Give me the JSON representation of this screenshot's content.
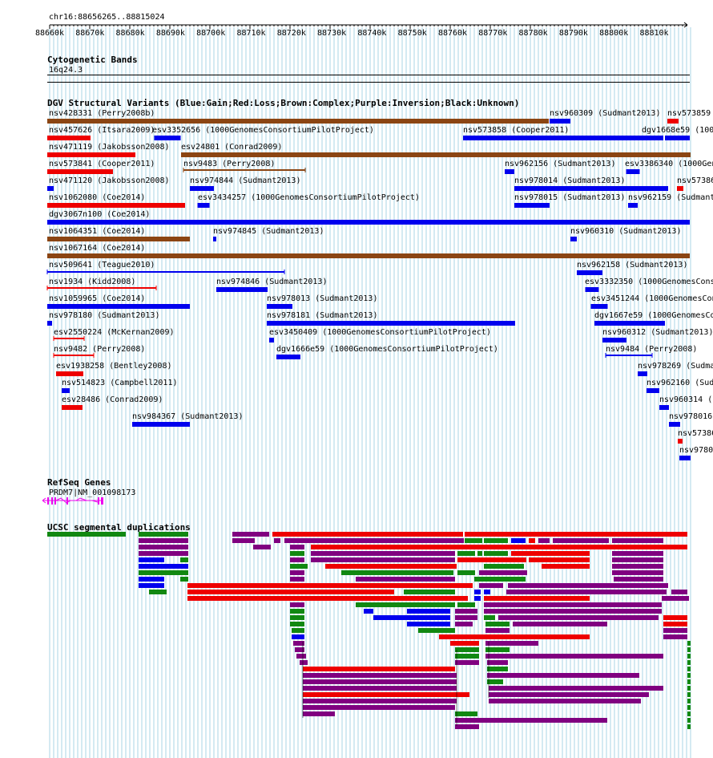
{
  "position": "chr16:88656265..88815024",
  "ruler": {
    "ticks": [
      "88660k",
      "88670k",
      "88680k",
      "88690k",
      "88700k",
      "88710k",
      "88720k",
      "88730k",
      "88740k",
      "88750k",
      "88760k",
      "88770k",
      "88780k",
      "88790k",
      "88800k",
      "88810k"
    ]
  },
  "colors": {
    "gain": "#0000ee",
    "loss": "#ee0000",
    "complex": "#8b4513",
    "inversion": "#800080",
    "unknown": "#000000",
    "segdup_green": "#118811",
    "gene": "#ee00ee",
    "grid": "#a8d4e4"
  },
  "tracks": {
    "cyto": {
      "title": "Cytogenetic Bands",
      "band": "16q24.3"
    },
    "dgv": {
      "title": "DGV Structural Variants (Blue:Gain;Red:Loss;Brown:Complex;Purple:Inversion;Black:Unknown)",
      "features": [
        {
          "label": "nsv428331 (Perry2008b)",
          "type": "complex"
        },
        {
          "label": "nsv960309 (Sudmant2013)",
          "type": "gain"
        },
        {
          "label": "nsv573859",
          "type": "loss"
        },
        {
          "label": "nsv457626 (Itsara2009)",
          "type": "loss"
        },
        {
          "label": "esv3352656 (1000GenomesConsortiumPilotProject)",
          "type": "gain"
        },
        {
          "label": "nsv573858 (Cooper2011)",
          "type": "gain"
        },
        {
          "label": "dgv1668e59 (100",
          "type": "gain"
        },
        {
          "label": "nsv471119 (Jakobsson2008)",
          "type": "loss"
        },
        {
          "label": "esv24801 (Conrad2009)",
          "type": "complex"
        },
        {
          "label": "nsv573841 (Cooper2011)",
          "type": "loss"
        },
        {
          "label": "nsv9483 (Perry2008)",
          "type": "complex"
        },
        {
          "label": "nsv962156 (Sudmant2013)",
          "type": "gain"
        },
        {
          "label": "esv3386340 (1000Gen",
          "type": "gain"
        },
        {
          "label": "nsv471120 (Jakobsson2008)",
          "type": "gain"
        },
        {
          "label": "nsv974844 (Sudmant2013)",
          "type": "gain"
        },
        {
          "label": "nsv978014 (Sudmant2013)",
          "type": "gain"
        },
        {
          "label": "nsv57386",
          "type": "loss"
        },
        {
          "label": "nsv1062080 (Coe2014)",
          "type": "loss"
        },
        {
          "label": "esv3434257 (1000GenomesConsortiumPilotProject)",
          "type": "gain"
        },
        {
          "label": "nsv978015 (Sudmant2013)",
          "type": "gain"
        },
        {
          "label": "nsv962159 (Sudmant",
          "type": "gain"
        },
        {
          "label": "dgv3067n100 (Coe2014)",
          "type": "gain"
        },
        {
          "label": "nsv1064351 (Coe2014)",
          "type": "complex"
        },
        {
          "label": "nsv974845 (Sudmant2013)",
          "type": "gain"
        },
        {
          "label": "nsv960310 (Sudmant2013)",
          "type": "gain"
        },
        {
          "label": "nsv1067164 (Coe2014)",
          "type": "complex"
        },
        {
          "label": "nsv509641 (Teague2010)",
          "type": "gain"
        },
        {
          "label": "nsv962158 (Sudmant2013)",
          "type": "gain"
        },
        {
          "label": "nsv1934 (Kidd2008)",
          "type": "loss"
        },
        {
          "label": "nsv974846 (Sudmant2013)",
          "type": "gain"
        },
        {
          "label": "esv3332350 (1000GenomesCons",
          "type": "gain"
        },
        {
          "label": "nsv1059965 (Coe2014)",
          "type": "gain"
        },
        {
          "label": "nsv978013 (Sudmant2013)",
          "type": "gain"
        },
        {
          "label": "esv3451244 (1000GenomesCon",
          "type": "gain"
        },
        {
          "label": "nsv978180 (Sudmant2013)",
          "type": "gain"
        },
        {
          "label": "nsv978181 (Sudmant2013)",
          "type": "gain"
        },
        {
          "label": "dgv1667e59 (1000GenomesCo",
          "type": "gain"
        },
        {
          "label": "esv2550224 (McKernan2009)",
          "type": "loss"
        },
        {
          "label": "esv3450409 (1000GenomesConsortiumPilotProject)",
          "type": "gain"
        },
        {
          "label": "nsv960312 (Sudmant2013)",
          "type": "gain"
        },
        {
          "label": "nsv9482 (Perry2008)",
          "type": "loss"
        },
        {
          "label": "dgv1666e59 (1000GenomesConsortiumPilotProject)",
          "type": "gain"
        },
        {
          "label": "nsv9484 (Perry2008)",
          "type": "gain"
        },
        {
          "label": "esv1938258 (Bentley2008)",
          "type": "loss"
        },
        {
          "label": "nsv978269 (Sudma",
          "type": "gain"
        },
        {
          "label": "nsv514823 (Campbell2011)",
          "type": "gain"
        },
        {
          "label": "nsv962160 (Sud",
          "type": "gain"
        },
        {
          "label": "esv28486 (Conrad2009)",
          "type": "loss"
        },
        {
          "label": "nsv960314 (",
          "type": "gain"
        },
        {
          "label": "nsv984367 (Sudmant2013)",
          "type": "gain"
        },
        {
          "label": "nsv978016",
          "type": "gain"
        },
        {
          "label": "nsv57386",
          "type": "loss"
        },
        {
          "label": "nsv9780",
          "type": "gain"
        }
      ]
    },
    "refseq": {
      "title": "RefSeq Genes",
      "gene_label": "PRDM7|NM_001098173"
    },
    "segdup": {
      "title": "UCSC segmental duplications"
    }
  }
}
